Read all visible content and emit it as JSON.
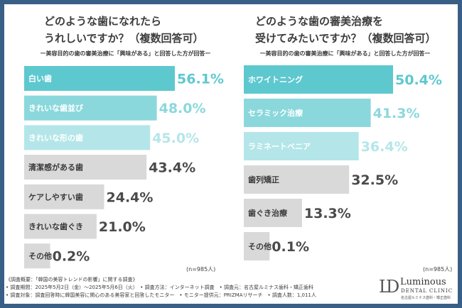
{
  "left_panel": {
    "title_lines": [
      "どのような歯になれたら",
      "うれしいですか？（複数回答可）"
    ],
    "subtitle": "ー美容目的の歯の審美治療に「興味がある」と回答した方が回答ー",
    "n_note": "(n=985人)"
  },
  "right_panel": {
    "title_lines": [
      "どのような歯の審美治療を",
      "受けてみたいですか？（複数回答可）"
    ],
    "subtitle": "ー美容目的の歯の審美治療に「興味がある」と回答した方が回答ー",
    "n_note": "(n=985人)"
  },
  "chart_data": [
    {
      "type": "bar",
      "orientation": "horizontal",
      "categories": [
        "白い歯",
        "きれいな歯並び",
        "きれいな形の歯",
        "清潔感がある歯",
        "ケアしやすい歯",
        "きれいな歯ぐき",
        "その他"
      ],
      "values": [
        56.1,
        48.0,
        45.0,
        43.4,
        24.4,
        21.0,
        0.2
      ],
      "value_labels": [
        "56.1%",
        "48.0%",
        "45.0%",
        "43.4%",
        "24.4%",
        "21.0%",
        "0.2%"
      ],
      "colors": [
        "#5ec8cf",
        "#8bd8dc",
        "#b4e6e9",
        "#d9d9d9",
        "#d9d9d9",
        "#d9d9d9",
        "#d9d9d9"
      ],
      "value_colors": [
        "#5ec8cf",
        "#8bd8dc",
        "#b4e6e9",
        "#4a4a4a",
        "#4a4a4a",
        "#4a4a4a",
        "#4a4a4a"
      ],
      "label_colors": [
        "#ffffff",
        "#ffffff",
        "#ffffff",
        "#3c3c3c",
        "#3c3c3c",
        "#3c3c3c",
        "#3c3c3c"
      ],
      "xlim": [
        0,
        56.1
      ]
    },
    {
      "type": "bar",
      "orientation": "horizontal",
      "categories": [
        "ホワイトニング",
        "セラミック治療",
        "ラミネートベニア",
        "歯列矯正",
        "歯ぐき治療",
        "その他"
      ],
      "values": [
        50.4,
        41.3,
        36.4,
        32.5,
        13.3,
        0.1
      ],
      "value_labels": [
        "50.4%",
        "41.3%",
        "36.4%",
        "32.5%",
        "13.3%",
        "0.1%"
      ],
      "colors": [
        "#5ec8cf",
        "#8bd8dc",
        "#b4e6e9",
        "#d9d9d9",
        "#d9d9d9",
        "#d9d9d9"
      ],
      "value_colors": [
        "#5ec8cf",
        "#8bd8dc",
        "#b4e6e9",
        "#4a4a4a",
        "#4a4a4a",
        "#4a4a4a"
      ],
      "label_colors": [
        "#ffffff",
        "#ffffff",
        "#ffffff",
        "#3c3c3c",
        "#3c3c3c",
        "#3c3c3c"
      ],
      "xlim": [
        0,
        50.4
      ]
    }
  ],
  "footer": {
    "line1": "《調査概要：「韓国の美容トレンドの影響」に関する調査》",
    "line2": "• 調査期間：2025年5月2日（金）〜2025年5月6日（火）　• 調査方法：インターネット調査　• 調査元：名古屋ルミナス歯科・矯正歯科",
    "line3": "• 調査対象：調査回答時に韓国美容に関心のある美容家と回答したモニター　• モニター提供元：PRIZMAリサーチ　• 調査人数：1,011人"
  },
  "logo": {
    "mark": "LD",
    "name": "Luminous",
    "sub": "DENTAL CLINIC",
    "tagline": "名古屋ルミナス歯科・矯正歯科"
  }
}
